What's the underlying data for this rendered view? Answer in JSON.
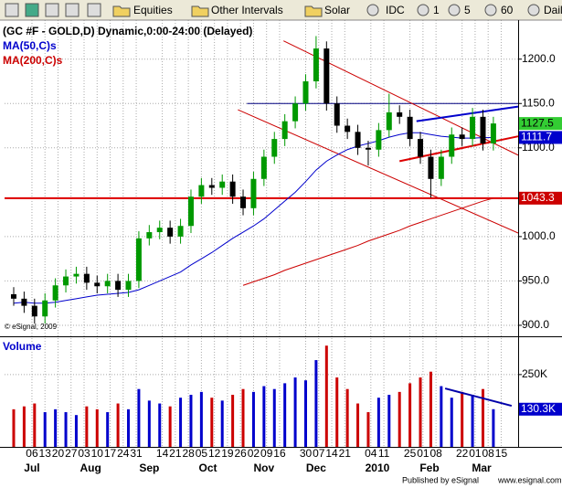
{
  "toolbar": {
    "items": [
      "Equities",
      "Other Intervals",
      "Solar",
      "IDC",
      "1",
      "5",
      "60",
      "Daily"
    ]
  },
  "chart_data": [
    {
      "type": "candlestick",
      "title": "(GC #F - GOLD,D) Dynamic,0:00-24:00 (Delayed)",
      "watermark": "© eSignal, 2009",
      "x": [
        -0.4,
        0.4,
        1.2,
        2.0,
        2.8,
        3.6,
        4.4,
        5.2,
        6.0,
        6.8,
        7.6,
        8.4,
        9.2,
        10.0,
        10.8,
        11.6,
        12.4,
        13.2,
        14.0,
        14.8,
        15.6,
        16.4,
        17.2,
        18.0,
        18.8,
        19.6,
        20.4,
        21.2,
        22.0,
        22.8,
        23.6,
        24.4,
        25.2,
        26.0,
        26.8,
        27.6,
        28.4,
        29.2,
        30.0,
        30.8,
        31.6,
        32.4,
        33.2,
        34.0,
        34.8,
        35.6,
        36.4
      ],
      "candles": [
        [
          935,
          943,
          922,
          930
        ],
        [
          930,
          938,
          914,
          922
        ],
        [
          922,
          930,
          902,
          910
        ],
        [
          910,
          936,
          902,
          928
        ],
        [
          928,
          953,
          920,
          945
        ],
        [
          945,
          963,
          937,
          955
        ],
        [
          955,
          966,
          947,
          958
        ],
        [
          958,
          966,
          940,
          948
        ],
        [
          948,
          956,
          936,
          944
        ],
        [
          944,
          958,
          936,
          950
        ],
        [
          950,
          958,
          932,
          940
        ],
        [
          940,
          958,
          932,
          950
        ],
        [
          950,
          1006,
          942,
          998
        ],
        [
          998,
          1013,
          990,
          1005
        ],
        [
          1005,
          1018,
          997,
          1010
        ],
        [
          1010,
          1018,
          992,
          1000
        ],
        [
          1000,
          1020,
          992,
          1012
        ],
        [
          1012,
          1053,
          1004,
          1045
        ],
        [
          1045,
          1066,
          1037,
          1058
        ],
        [
          1058,
          1066,
          1047,
          1055
        ],
        [
          1055,
          1070,
          1047,
          1062
        ],
        [
          1062,
          1070,
          1037,
          1045
        ],
        [
          1045,
          1053,
          1024,
          1032
        ],
        [
          1032,
          1073,
          1024,
          1065
        ],
        [
          1065,
          1098,
          1057,
          1090
        ],
        [
          1090,
          1118,
          1082,
          1110
        ],
        [
          1110,
          1138,
          1102,
          1130
        ],
        [
          1130,
          1158,
          1122,
          1150
        ],
        [
          1150,
          1183,
          1142,
          1175
        ],
        [
          1175,
          1226,
          1167,
          1212
        ],
        [
          1212,
          1220,
          1142,
          1150
        ],
        [
          1150,
          1158,
          1117,
          1125
        ],
        [
          1125,
          1133,
          1110,
          1118
        ],
        [
          1118,
          1126,
          1092,
          1100
        ],
        [
          1100,
          1108,
          1080,
          1098
        ],
        [
          1098,
          1128,
          1090,
          1120
        ],
        [
          1120,
          1161,
          1112,
          1140
        ],
        [
          1140,
          1148,
          1127,
          1135
        ],
        [
          1135,
          1143,
          1102,
          1110
        ],
        [
          1110,
          1118,
          1082,
          1090
        ],
        [
          1090,
          1098,
          1044,
          1065
        ],
        [
          1065,
          1098,
          1057,
          1090
        ],
        [
          1090,
          1123,
          1082,
          1115
        ],
        [
          1115,
          1123,
          1102,
          1110
        ],
        [
          1110,
          1145,
          1102,
          1135
        ],
        [
          1135,
          1143,
          1097,
          1105
        ],
        [
          1105,
          1135,
          1097,
          1127.5
        ]
      ],
      "up_color": "#009900",
      "down_color": "#000000",
      "last_color": "#33cc33",
      "overlays": [
        {
          "name": "MA(50,C)s",
          "color": "#0000cc",
          "values": [
            925,
            926,
            925,
            925,
            926,
            928,
            930,
            932,
            934,
            935,
            936,
            937,
            940,
            945,
            950,
            955,
            960,
            968,
            975,
            982,
            990,
            998,
            1005,
            1012,
            1020,
            1030,
            1040,
            1050,
            1062,
            1075,
            1085,
            1092,
            1098,
            1102,
            1105,
            1108,
            1112,
            1115,
            1117,
            1117,
            1115,
            1113,
            1112,
            1111,
            1111,
            1111.5,
            1111.7
          ]
        },
        {
          "name": "MA(200,C)s",
          "color": "#cc0000",
          "values": [
            null,
            null,
            null,
            null,
            null,
            null,
            null,
            null,
            null,
            null,
            null,
            null,
            null,
            null,
            null,
            null,
            null,
            null,
            null,
            null,
            null,
            null,
            945,
            949,
            953,
            957,
            962,
            966,
            970,
            974,
            978,
            982,
            986,
            990,
            995,
            999,
            1003,
            1007,
            1012,
            1016,
            1020,
            1024,
            1028,
            1032,
            1036,
            1040,
            1043.3
          ]
        }
      ],
      "trendlines": [
        {
          "x": [
            17.5,
            38.3
          ],
          "y": [
            1150,
            1150
          ],
          "color": "#000080",
          "width": 1
        },
        {
          "x": [
            -1.1,
            38.3
          ],
          "y": [
            1043.3,
            1043.3
          ],
          "color": "#dd0000",
          "width": 2
        },
        {
          "x": [
            20.3,
            38.3
          ],
          "y": [
            1220.6,
            1091.8
          ],
          "color": "#cc0000",
          "width": 1
        },
        {
          "x": [
            16.8,
            38.3
          ],
          "y": [
            1143,
            1004
          ],
          "color": "#cc0000",
          "width": 1
        },
        {
          "x": [
            29.2,
            38.3
          ],
          "y": [
            1085,
            1113
          ],
          "color": "#dd0000",
          "width": 2
        },
        {
          "x": [
            30.5,
            38.3
          ],
          "y": [
            1130,
            1146.5
          ],
          "color": "#0000cc",
          "width": 2
        }
      ],
      "xlim": [
        -1.1,
        38.3
      ],
      "ylim": [
        887.6,
        1244
      ],
      "yticks": [
        {
          "value": 900,
          "label": "900.0"
        },
        {
          "value": 950,
          "label": "950.0"
        },
        {
          "value": 1000,
          "label": "1000.0"
        },
        {
          "value": 1100,
          "label": "1100.0"
        },
        {
          "value": 1150,
          "label": "1150.0"
        },
        {
          "value": 1200,
          "label": "1200.0"
        }
      ],
      "xticks": [
        {
          "value": 1,
          "label": "06"
        },
        {
          "value": 2,
          "label": "13"
        },
        {
          "value": 3,
          "label": "20"
        },
        {
          "value": 4,
          "label": "27"
        },
        {
          "value": 5,
          "label": "03"
        },
        {
          "value": 6,
          "label": "10"
        },
        {
          "value": 7,
          "label": "17"
        },
        {
          "value": 8,
          "label": "24"
        },
        {
          "value": 9,
          "label": "31"
        },
        {
          "value": 11,
          "label": "14"
        },
        {
          "value": 12,
          "label": "21"
        },
        {
          "value": 13,
          "label": "28"
        },
        {
          "value": 14,
          "label": "05"
        },
        {
          "value": 15,
          "label": "12"
        },
        {
          "value": 16,
          "label": "19"
        },
        {
          "value": 17,
          "label": "26"
        },
        {
          "value": 18,
          "label": "02"
        },
        {
          "value": 19,
          "label": "09"
        },
        {
          "value": 20,
          "label": "16"
        },
        {
          "value": 22,
          "label": "30"
        },
        {
          "value": 23,
          "label": "07"
        },
        {
          "value": 24,
          "label": "14"
        },
        {
          "value": 25,
          "label": "21"
        },
        {
          "value": 27,
          "label": "04"
        },
        {
          "value": 28,
          "label": "11"
        },
        {
          "value": 30,
          "label": "25"
        },
        {
          "value": 31,
          "label": "01"
        },
        {
          "value": 32,
          "label": "08"
        },
        {
          "value": 34,
          "label": "22"
        },
        {
          "value": 35,
          "label": "01"
        },
        {
          "value": 36,
          "label": "08"
        },
        {
          "value": 37,
          "label": "15"
        }
      ],
      "month_ticks": [
        {
          "value": 1,
          "label": "Jul"
        },
        {
          "value": 5.5,
          "label": "Aug"
        },
        {
          "value": 10,
          "label": "Sep"
        },
        {
          "value": 14.5,
          "label": "Oct"
        },
        {
          "value": 18.8,
          "label": "Nov"
        },
        {
          "value": 22.8,
          "label": "Dec"
        },
        {
          "value": 27.5,
          "label": "2010"
        },
        {
          "value": 31.5,
          "label": "Feb"
        },
        {
          "value": 35.5,
          "label": "Mar"
        }
      ],
      "grid": true
    },
    {
      "type": "bar",
      "title": "Volume",
      "values": [
        130000,
        140000,
        150000,
        120000,
        130000,
        120000,
        110000,
        140000,
        130000,
        120000,
        150000,
        130000,
        200000,
        160000,
        150000,
        140000,
        170000,
        180000,
        190000,
        170000,
        160000,
        180000,
        200000,
        190000,
        210000,
        200000,
        220000,
        240000,
        230000,
        300000,
        350000,
        240000,
        200000,
        150000,
        120000,
        170000,
        180000,
        190000,
        220000,
        240000,
        260000,
        210000,
        170000,
        190000,
        180000,
        200000,
        130300
      ],
      "up_color": "#0000cc",
      "down_color": "#cc0000",
      "tag": {
        "value": 130300,
        "label": "130.3K"
      },
      "tag_color": "#0000cc",
      "ylim": [
        0,
        376000
      ],
      "yticks": [
        {
          "value": 250000,
          "label": "250K"
        }
      ],
      "trendlines": [
        {
          "x": [
            32.7,
            37.8
          ],
          "y": [
            202000,
            142000
          ],
          "color": "#0000aa",
          "width": 2
        }
      ]
    }
  ],
  "footer": {
    "left": "Published by eSignal",
    "right": "www.esignal.com"
  }
}
